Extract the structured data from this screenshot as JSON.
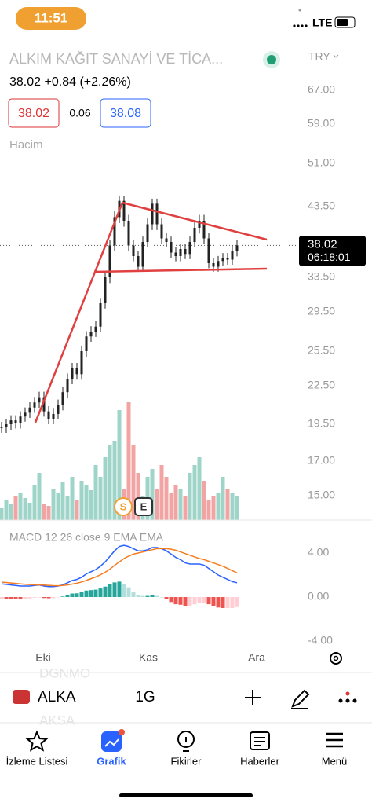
{
  "status": {
    "time": "11:51",
    "network": "LTE"
  },
  "header": {
    "name": "ALKIM KAĞIT SANAYİ VE TİCA...",
    "currency": "TRY"
  },
  "quote": {
    "price": "38.02",
    "change": "+0.84",
    "change_pct": "(+2.26%)",
    "bid": "38.02",
    "spread": "0.06",
    "ask": "38.08"
  },
  "chart": {
    "volume_label": "Hacim",
    "price_ticks": [
      {
        "value": 67,
        "label": "67.00"
      },
      {
        "value": 59,
        "label": "59.00"
      },
      {
        "value": 51,
        "label": "51.00"
      },
      {
        "value": 43.5,
        "label": "43.50"
      },
      {
        "value": 33.5,
        "label": "33.50"
      },
      {
        "value": 29.5,
        "label": "29.50"
      },
      {
        "value": 25.5,
        "label": "25.50"
      },
      {
        "value": 22.5,
        "label": "22.50"
      },
      {
        "value": 19.5,
        "label": "19.50"
      },
      {
        "value": 17,
        "label": "17.00"
      },
      {
        "value": 15,
        "label": "15.00"
      }
    ],
    "last_price": {
      "value": 38.02,
      "label": "38.02"
    },
    "countdown": "06:18:01",
    "closes": [
      19.3,
      19.5,
      19.8,
      19.6,
      20.1,
      20.4,
      20.8,
      21.2,
      21.6,
      20.5,
      19.9,
      20.3,
      21.0,
      22.0,
      23.1,
      24.0,
      23.5,
      25.5,
      27.0,
      27.5,
      28.0,
      30.5,
      33.5,
      38.0,
      42.0,
      44.5,
      41.5,
      38.0,
      36.5,
      35.0,
      38.5,
      41.0,
      44.0,
      41.0,
      39.0,
      38.5,
      37.0,
      36.5,
      37.5,
      36.8,
      38.5,
      40.5,
      41.5,
      39.0,
      35.5,
      35.0,
      35.8,
      36.2,
      36.0,
      37.2,
      38.02
    ],
    "volumes": [
      15,
      25,
      20,
      30,
      35,
      28,
      22,
      45,
      60,
      20,
      18,
      40,
      35,
      48,
      30,
      55,
      25,
      50,
      45,
      38,
      70,
      55,
      80,
      95,
      100,
      140,
      40,
      150,
      95,
      60,
      30,
      55,
      65,
      40,
      70,
      55,
      35,
      45,
      40,
      30,
      60,
      70,
      80,
      50,
      25,
      30,
      35,
      55,
      40,
      35,
      30
    ],
    "events": [
      "S",
      "E"
    ],
    "macd_label": "MACD 12 26 close 9 EMA EMA",
    "macd_ticks": [
      {
        "value": 4,
        "label": "4.00"
      },
      {
        "value": 0,
        "label": "0.00"
      },
      {
        "value": -4,
        "label": "-4.00"
      }
    ],
    "macd": [
      1.2,
      1.15,
      1.1,
      1.05,
      1.0,
      1.0,
      1.0,
      1.05,
      1.1,
      1.0,
      0.95,
      0.95,
      1.0,
      1.1,
      1.3,
      1.5,
      1.6,
      1.8,
      2.1,
      2.3,
      2.5,
      2.8,
      3.2,
      3.7,
      4.2,
      4.6,
      4.7,
      4.6,
      4.4,
      4.2,
      4.2,
      4.3,
      4.5,
      4.5,
      4.4,
      4.2,
      3.9,
      3.6,
      3.4,
      3.1,
      3.0,
      3.0,
      3.0,
      2.9,
      2.6,
      2.3,
      2.0,
      1.8,
      1.6,
      1.4,
      1.3
    ],
    "signal": [
      1.35,
      1.32,
      1.28,
      1.24,
      1.2,
      1.16,
      1.13,
      1.11,
      1.11,
      1.09,
      1.06,
      1.04,
      1.03,
      1.05,
      1.1,
      1.18,
      1.26,
      1.37,
      1.51,
      1.67,
      1.83,
      2.02,
      2.25,
      2.54,
      2.87,
      3.2,
      3.5,
      3.72,
      3.9,
      4.0,
      4.1,
      4.2,
      4.3,
      4.4,
      4.4,
      4.4,
      4.35,
      4.25,
      4.1,
      3.95,
      3.8,
      3.65,
      3.5,
      3.4,
      3.25,
      3.1,
      2.95,
      2.8,
      2.6,
      2.4,
      2.2
    ],
    "histogram": [
      -0.15,
      -0.17,
      -0.18,
      -0.19,
      -0.2,
      -0.16,
      -0.13,
      -0.06,
      -0.01,
      -0.09,
      -0.11,
      -0.09,
      -0.03,
      0.05,
      0.2,
      0.32,
      0.34,
      0.43,
      0.59,
      0.63,
      0.67,
      0.78,
      0.95,
      1.16,
      1.33,
      1.4,
      1.2,
      0.88,
      0.5,
      0.2,
      0.1,
      0.1,
      0.2,
      0.1,
      0,
      -0.2,
      -0.45,
      -0.65,
      -0.7,
      -0.85,
      -0.8,
      -0.65,
      -0.5,
      -0.5,
      -0.65,
      -0.8,
      -0.95,
      -1.0,
      -1.0,
      -1.0,
      -0.9
    ],
    "time_labels": [
      "Eki",
      "Kas",
      "Ara"
    ]
  },
  "toolbar": {
    "symbol": "ALKA",
    "interval": "1G",
    "ghost": [
      "DGNMO",
      "AKSA"
    ]
  },
  "nav": [
    "İzleme Listesi",
    "Grafik",
    "Fikirler",
    "Haberler",
    "Menü"
  ]
}
